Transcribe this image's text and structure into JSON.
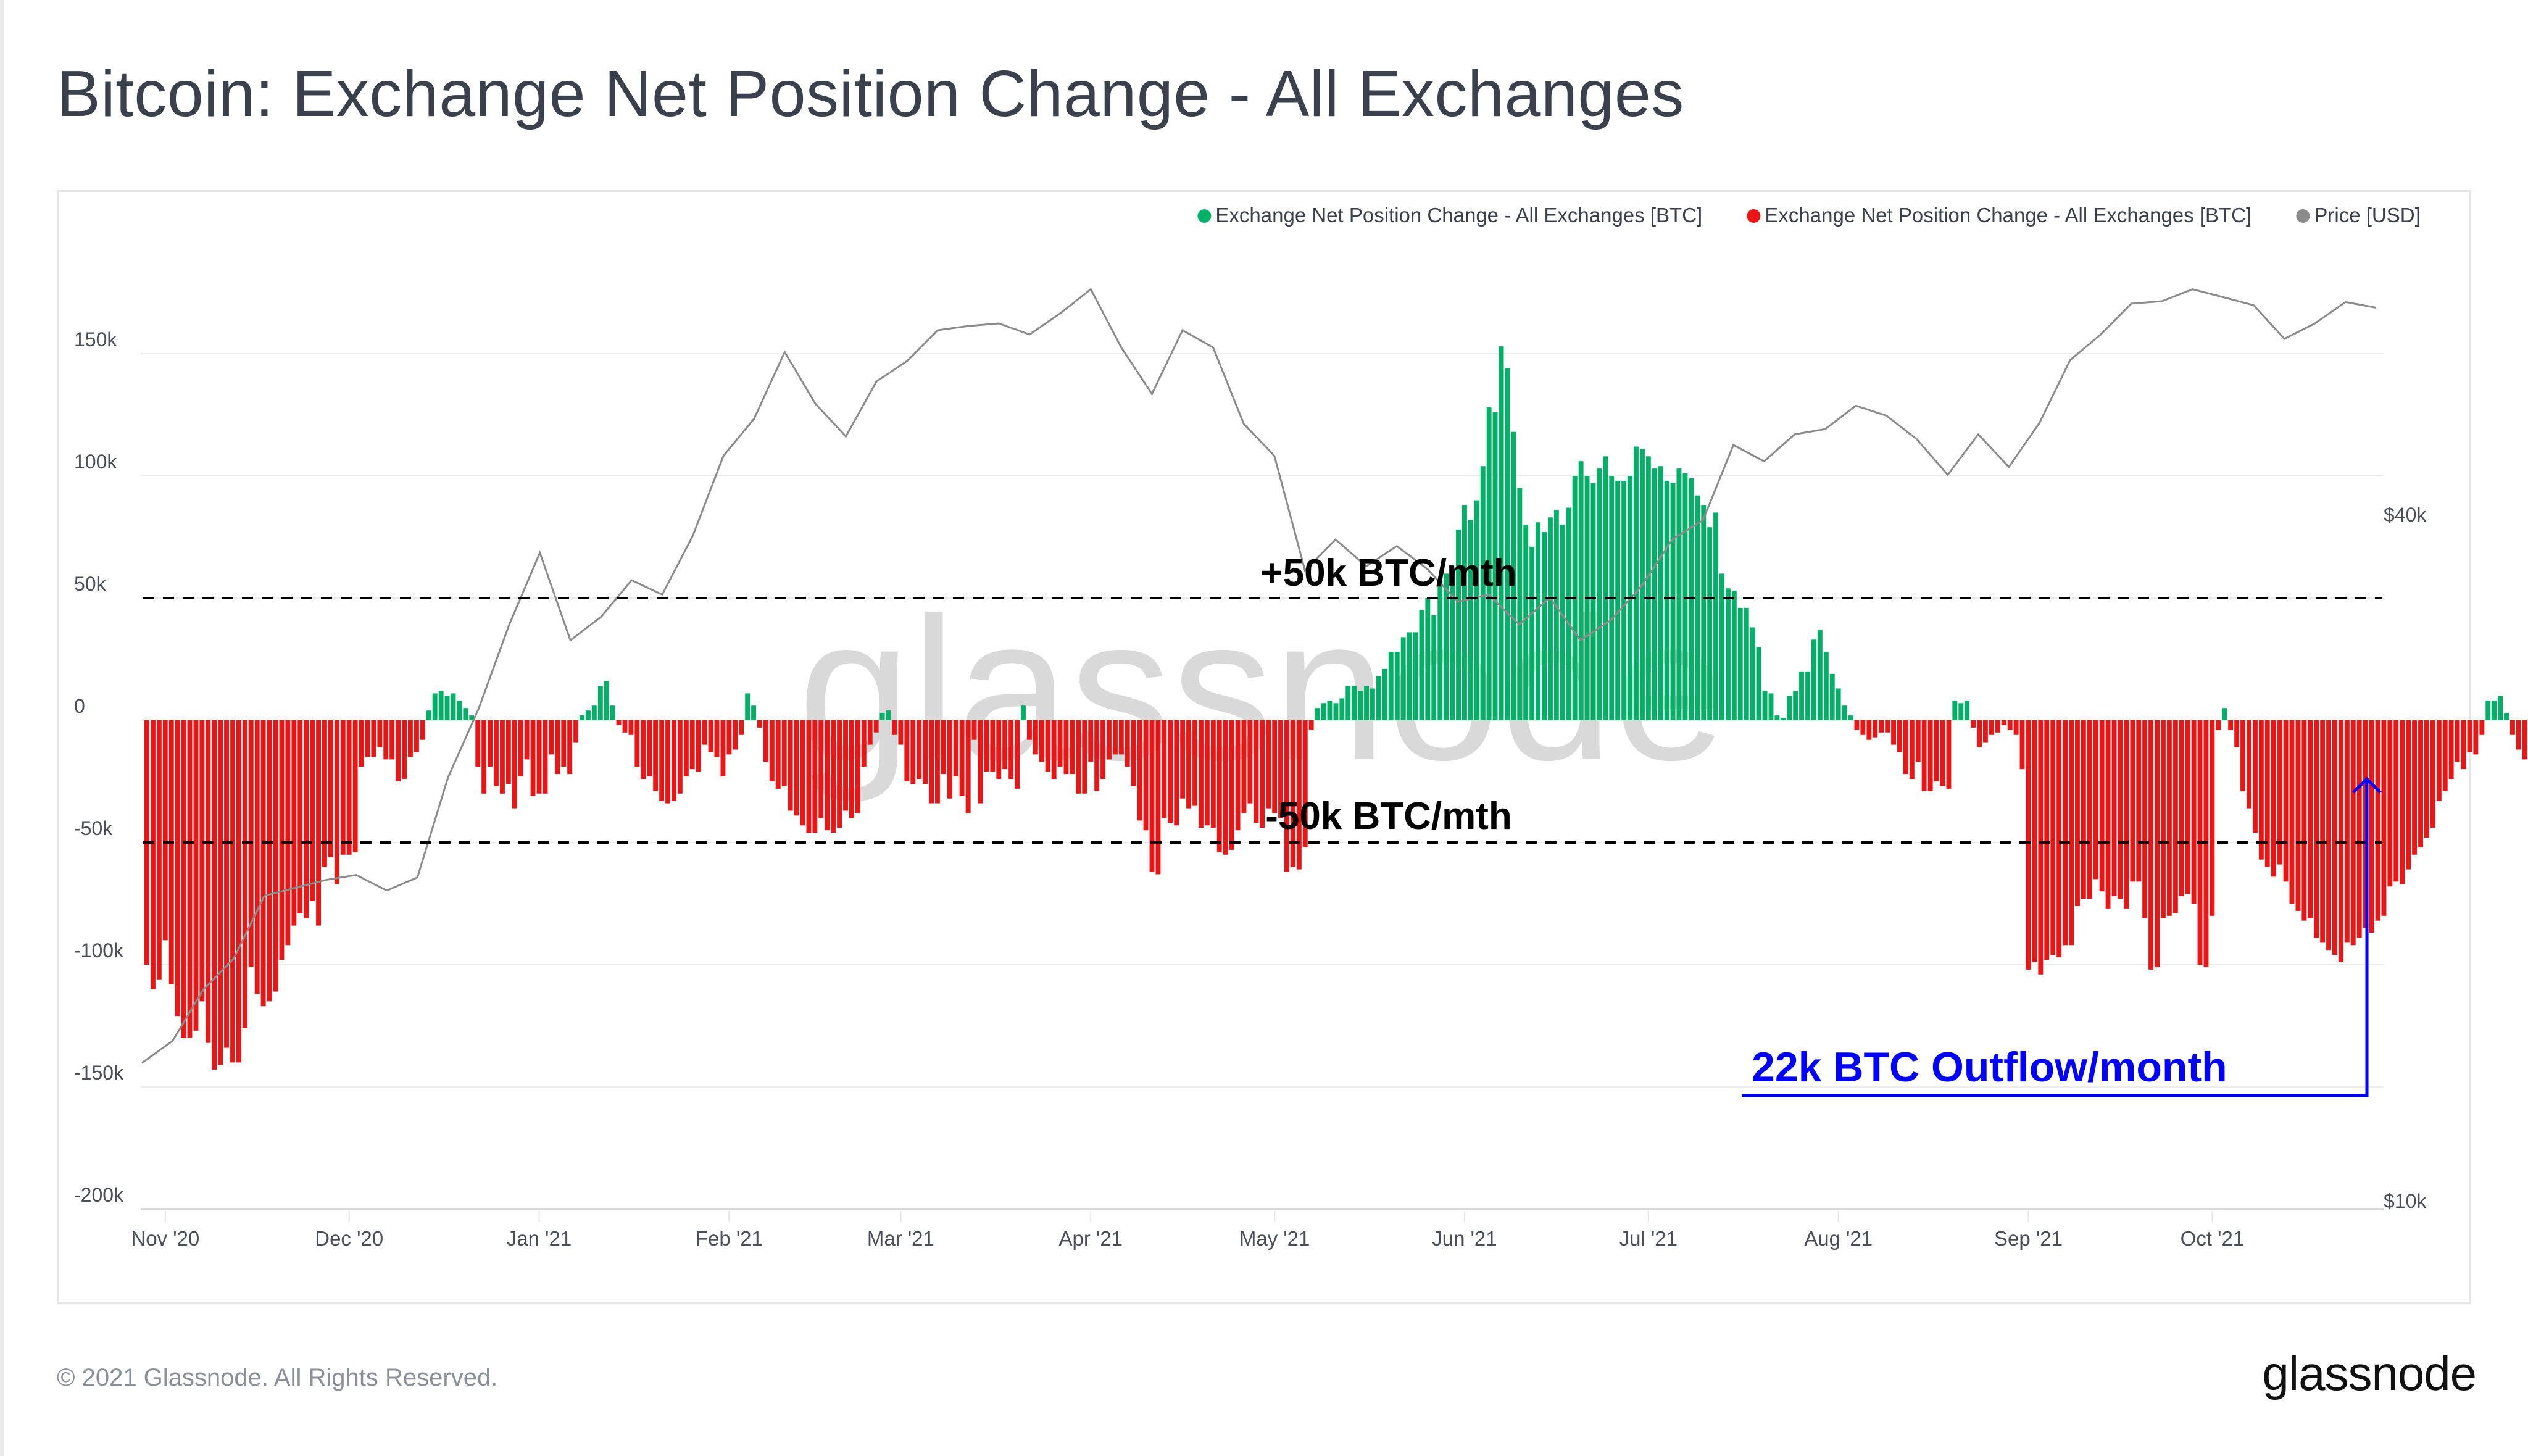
{
  "title": "Bitcoin: Exchange Net Position Change - All Exchanges",
  "footer": {
    "copyright": "© 2021 Glassnode. All Rights Reserved.",
    "logo": "glassnode"
  },
  "watermark": "glassnode",
  "colors": {
    "positive": "#00b067",
    "negative": "#ec1515",
    "price": "#8b8b8b",
    "annotation": "#0000ff",
    "reference_line": "#000000",
    "title": "#3b414c"
  },
  "annotations": {
    "upper_reference": {
      "label": "+50k BTC/mth",
      "value": 50000
    },
    "lower_reference": {
      "label": "-50k BTC/mth",
      "value": -50000
    },
    "callout": {
      "label": "22k BTC Outflow/month",
      "points_to_date": "2021-10-28",
      "value": -22000
    }
  },
  "chart_data": {
    "type": "bar",
    "title": "Bitcoin: Exchange Net Position Change - All Exchanges",
    "xlabel": "",
    "ylabel": "",
    "y_left_ticks": [
      "150k",
      "100k",
      "50k",
      "0",
      "-50k",
      "-100k",
      "-150k",
      "-200k"
    ],
    "y_left_tick_values": [
      150000,
      100000,
      50000,
      0,
      -50000,
      -100000,
      -150000,
      -200000
    ],
    "ylim": [
      -200000,
      150000
    ],
    "y_right_ticks": [
      "$40k",
      "$10k"
    ],
    "y_right_tick_values": [
      40000,
      10000
    ],
    "y_right_scale": "log",
    "x_ticks": [
      "Nov '20",
      "Dec '20",
      "Jan '21",
      "Feb '21",
      "Mar '21",
      "Apr '21",
      "May '21",
      "Jun '21",
      "Jul '21",
      "Aug '21",
      "Sep '21",
      "Oct '21"
    ],
    "x_tick_dates": [
      "2020-11-01",
      "2020-12-01",
      "2021-01-01",
      "2021-02-01",
      "2021-03-01",
      "2021-04-01",
      "2021-05-01",
      "2021-06-01",
      "2021-07-01",
      "2021-08-01",
      "2021-09-01",
      "2021-10-01"
    ],
    "x_start": "2020-10-29",
    "grid": true,
    "legend": {
      "placement": "top-right",
      "entries": [
        {
          "label": "Exchange Net Position Change - All Exchanges [BTC]",
          "color": "#00b067"
        },
        {
          "label": "Exchange Net Position Change - All Exchanges [BTC]",
          "color": "#ec1515"
        },
        {
          "label": "Price [USD]",
          "color": "#8b8b8b"
        }
      ]
    },
    "series": [
      {
        "name": "Exchange Net Position Change - All Exchanges [BTC]",
        "unit": "BTC",
        "frequency": "daily",
        "values": [
          -100000,
          -110000,
          -106000,
          -90000,
          -108000,
          -121000,
          -130000,
          -130000,
          -127000,
          -115000,
          -132000,
          -143000,
          -141000,
          -134000,
          -140000,
          -140000,
          -126000,
          -101000,
          -112000,
          -117000,
          -115000,
          -111000,
          -98000,
          -92000,
          -84000,
          -79000,
          -81000,
          -74000,
          -84000,
          -60000,
          -56000,
          -67000,
          -55000,
          -55000,
          -54000,
          -19000,
          -15000,
          -15000,
          -11000,
          -16000,
          -16000,
          -25000,
          -24000,
          -15000,
          -13000,
          -8000,
          4000,
          11000,
          12000,
          10000,
          11000,
          8000,
          5000,
          2000,
          -19000,
          -30000,
          -19000,
          -27000,
          -30000,
          -26000,
          -36000,
          -23000,
          -16000,
          -31000,
          -30000,
          -30000,
          -14000,
          -22000,
          -19000,
          -22000,
          -9000,
          2000,
          4000,
          6000,
          14000,
          16000,
          6000,
          -2000,
          -5000,
          -6000,
          -19000,
          -24000,
          -23000,
          -29000,
          -33000,
          -34000,
          -33000,
          -30000,
          -23000,
          -20000,
          -21000,
          -10000,
          -13000,
          -15000,
          -23000,
          -14000,
          -12000,
          -6000,
          11000,
          6000,
          -3000,
          -17000,
          -25000,
          -28000,
          -27000,
          -37000,
          -39000,
          -43000,
          -46000,
          -46000,
          -40000,
          -45000,
          -46000,
          -44000,
          -37000,
          -40000,
          -38000,
          -19000,
          -10000,
          -5000,
          3000,
          4000,
          -6000,
          -10000,
          -25000,
          -26000,
          -24000,
          -26000,
          -34000,
          -34000,
          -22000,
          -32000,
          -23000,
          -31000,
          -38000,
          -8000,
          -34000,
          -21000,
          -21000,
          -24000,
          -20000,
          -24000,
          -28000,
          6000,
          -8000,
          -14000,
          -17000,
          -21000,
          -24000,
          -19000,
          -22000,
          -22000,
          -30000,
          -30000,
          -17000,
          -29000,
          -24000,
          -16000,
          -14000,
          -14000,
          -19000,
          -27000,
          -41000,
          -45000,
          -62000,
          -63000,
          -40000,
          -42000,
          -43000,
          -32000,
          -36000,
          -35000,
          -44000,
          -43000,
          -44000,
          -54000,
          -55000,
          -53000,
          -45000,
          -38000,
          -34000,
          -42000,
          -44000,
          -36000,
          -38000,
          -40000,
          -62000,
          -60000,
          -61000,
          -52000,
          -4000,
          5000,
          7000,
          8000,
          7000,
          9000,
          14000,
          14000,
          12000,
          14000,
          13000,
          18000,
          21000,
          28000,
          28000,
          34000,
          36000,
          36000,
          45000,
          50000,
          43000,
          57000,
          60000,
          62000,
          78000,
          88000,
          82000,
          90000,
          104000,
          128000,
          126000,
          153000,
          144000,
          118000,
          95000,
          80000,
          71000,
          81000,
          77000,
          83000,
          86000,
          80000,
          87000,
          100000,
          106000,
          100000,
          97000,
          103000,
          108000,
          100000,
          98000,
          98000,
          100000,
          112000,
          111000,
          108000,
          103000,
          104000,
          98000,
          97000,
          103000,
          101000,
          99000,
          92000,
          88000,
          79000,
          85000,
          60000,
          54000,
          53000,
          46000,
          46000,
          38000,
          30000,
          12000,
          11000,
          2000,
          1000,
          10000,
          12000,
          20000,
          20000,
          33000,
          37000,
          28000,
          19000,
          13000,
          6000,
          2000,
          -4000,
          -6000,
          -8000,
          -7000,
          -5000,
          -5000,
          -10000,
          -13000,
          -22000,
          -24000,
          -17000,
          -29000,
          -29000,
          -25000,
          -27000,
          -28000,
          8000,
          7000,
          8000,
          -3000,
          -11000,
          -9000,
          -6000,
          -5000,
          -2000,
          -4000,
          -6000,
          -20000,
          -102000,
          -99000,
          -104000,
          -98000,
          -96000,
          -97000,
          -92000,
          -92000,
          -76000,
          -73000,
          -73000,
          -65000,
          -70000,
          -77000,
          -72000,
          -73000,
          -77000,
          -66000,
          -66000,
          -81000,
          -102000,
          -101000,
          -81000,
          -80000,
          -79000,
          -72000,
          -71000,
          -75000,
          -100000,
          -101000,
          -80000,
          -4000,
          5000,
          -4000,
          -11000,
          -29000,
          -36000,
          -46000,
          -57000,
          -60000,
          -64000,
          -59000,
          -66000,
          -75000,
          -78000,
          -82000,
          -81000,
          -89000,
          -91000,
          -94000,
          -96000,
          -99000,
          -91000,
          -92000,
          -89000,
          -85000,
          -87000,
          -82000,
          -80000,
          -68000,
          -66000,
          -67000,
          -61000,
          -55000,
          -52000,
          -48000,
          -44000,
          -33000,
          -29000,
          -24000,
          -17000,
          -20000,
          -13000,
          -14000,
          -6000,
          8000,
          8000,
          10000,
          3000,
          -6000,
          -12000,
          -16000,
          -13000,
          -10000,
          -19000,
          -24000,
          -22000
        ]
      },
      {
        "name": "Price [USD]",
        "unit": "USD",
        "frequency": "weekly",
        "values": [
          13200,
          13800,
          15300,
          16300,
          18500,
          18800,
          19100,
          19300,
          18700,
          19200,
          23500,
          27000,
          32000,
          37000,
          31000,
          32500,
          35000,
          34000,
          38300,
          45000,
          48500,
          55500,
          50000,
          46800,
          52300,
          54500,
          58000,
          58500,
          58800,
          57500,
          60000,
          63000,
          56000,
          51000,
          58000,
          56000,
          48000,
          45000,
          35700,
          38000,
          36000,
          37500,
          35800,
          33500,
          34000,
          32000,
          33800,
          31000,
          32300,
          34600,
          38000,
          39500,
          46000,
          44500,
          47000,
          47500,
          49800,
          48800,
          46500,
          43300,
          47000,
          44000,
          48100,
          54600,
          57500,
          61200,
          61500,
          63000,
          62000,
          61000,
          57000,
          58800,
          61400,
          60700
        ]
      }
    ]
  }
}
